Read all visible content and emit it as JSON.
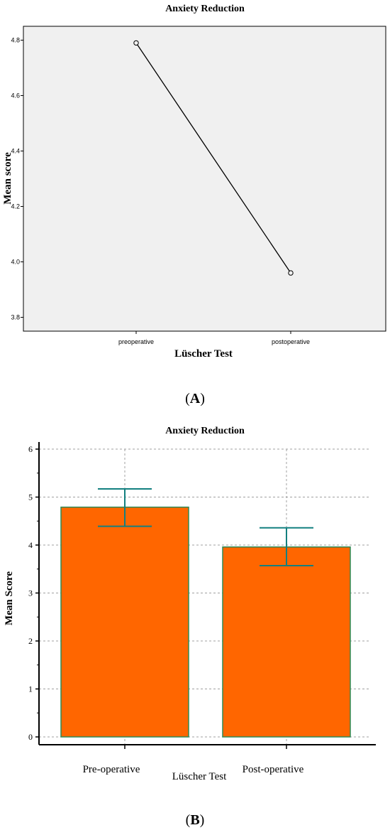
{
  "chart_data": [
    {
      "panel": "A",
      "type": "line",
      "title": "Anxiety Reduction",
      "xlabel": "Lüscher Test",
      "ylabel": "Mean score",
      "categories": [
        "preoperative",
        "postoperative"
      ],
      "values": [
        4.79,
        3.96
      ],
      "ylim": [
        3.75,
        4.85
      ],
      "yticks": [
        "3.8",
        "4.0",
        "4.2",
        "4.4",
        "4.6",
        "4.8"
      ],
      "grid": false,
      "colors": {
        "plot_bg": "#f0f0f0",
        "line": "#000000"
      }
    },
    {
      "panel": "B",
      "type": "bar",
      "title": "Anxiety Reduction",
      "xlabel": "Lüscher Test",
      "ylabel": "Mean Score",
      "categories": [
        "Pre-operative",
        "Post-operative"
      ],
      "values": [
        4.79,
        3.96
      ],
      "error_low": [
        4.39,
        3.57
      ],
      "error_high": [
        5.17,
        4.36
      ],
      "ylim": [
        0,
        6
      ],
      "yticks": [
        "0",
        "1",
        "2",
        "3",
        "4",
        "5",
        "6"
      ],
      "grid": true,
      "colors": {
        "bar": "#ff6600",
        "bar_edge": "#2e8b57",
        "error_bar": "#138080"
      }
    }
  ],
  "labels": {
    "panel_a": "A",
    "panel_b": "B"
  }
}
